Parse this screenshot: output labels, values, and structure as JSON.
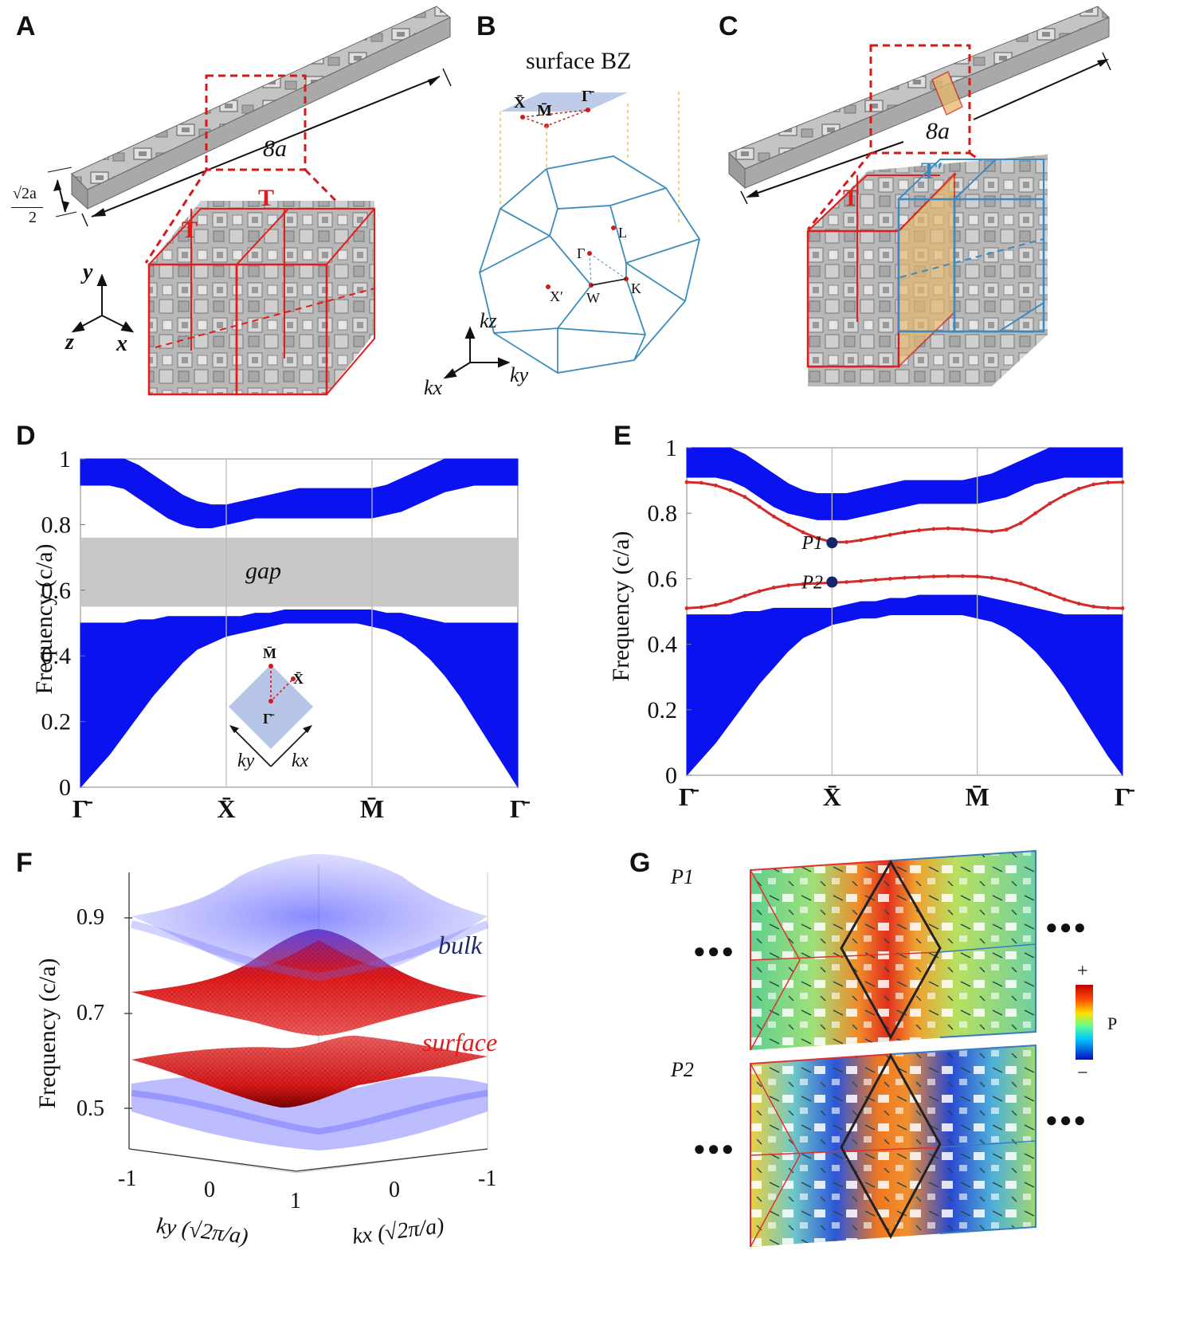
{
  "panels": {
    "A": {
      "letter": "A",
      "length_label": "8a",
      "height_label_num": "√2a",
      "height_label_den": "2",
      "cell_labels": [
        "T",
        "T"
      ],
      "axes": [
        "y",
        "z",
        "x"
      ]
    },
    "B": {
      "letter": "B",
      "title": "surface BZ",
      "surface_points": [
        "X̄",
        "M̄",
        "Γ̄"
      ],
      "bulk_points": [
        "L",
        "Γ",
        "X′",
        "W",
        "K"
      ],
      "axes": [
        "kz",
        "kx",
        "ky"
      ]
    },
    "C": {
      "letter": "C",
      "length_label": "8a",
      "cell_labels": [
        "T",
        "T′"
      ]
    },
    "D": {
      "letter": "D"
    },
    "E": {
      "letter": "E"
    },
    "F": {
      "letter": "F"
    },
    "G": {
      "letter": "G",
      "mode_labels": [
        "P1",
        "P2"
      ],
      "colorbar_plus": "+",
      "colorbar_minus": "−",
      "colorbar_label": "P",
      "ellipsis": "●●●"
    }
  },
  "chart_data": [
    {
      "panel": "D",
      "type": "area",
      "ylabel": "Frequency (c/a)",
      "xlabel": "",
      "ylim": [
        0,
        1
      ],
      "yticks": [
        0,
        0.2,
        0.4,
        0.6,
        0.8,
        1
      ],
      "x_ticks": [
        "Γ̄",
        "X̄",
        "M̄",
        "Γ̄"
      ],
      "x": [
        0,
        0.1,
        0.2,
        0.3,
        0.4,
        0.5,
        0.6,
        0.7,
        0.8,
        0.9,
        1.0,
        1.1,
        1.2,
        1.3,
        1.4,
        1.5,
        1.6,
        1.7,
        1.8,
        1.9,
        2.0,
        2.1,
        2.2,
        2.3,
        2.4,
        2.5,
        2.6,
        2.7,
        2.8,
        2.9,
        3.0
      ],
      "bands": [
        {
          "name": "",
          "lower": [
            0,
            0.05,
            0.1,
            0.16,
            0.22,
            0.28,
            0.33,
            0.38,
            0.42,
            0.44,
            0.46,
            0.47,
            0.48,
            0.49,
            0.5,
            0.5,
            0.5,
            0.5,
            0.5,
            0.5,
            0.49,
            0.48,
            0.46,
            0.43,
            0.39,
            0.34,
            0.28,
            0.21,
            0.14,
            0.07,
            0
          ],
          "upper": [
            0.5,
            0.5,
            0.5,
            0.5,
            0.51,
            0.51,
            0.52,
            0.52,
            0.52,
            0.52,
            0.52,
            0.52,
            0.53,
            0.53,
            0.54,
            0.54,
            0.54,
            0.54,
            0.54,
            0.54,
            0.54,
            0.53,
            0.53,
            0.52,
            0.51,
            0.5,
            0.5,
            0.5,
            0.5,
            0.5,
            0.5
          ]
        },
        {
          "name": "",
          "lower": [
            0.92,
            0.92,
            0.92,
            0.91,
            0.88,
            0.85,
            0.82,
            0.8,
            0.79,
            0.79,
            0.8,
            0.81,
            0.82,
            0.82,
            0.82,
            0.82,
            0.82,
            0.82,
            0.82,
            0.82,
            0.82,
            0.83,
            0.84,
            0.86,
            0.88,
            0.9,
            0.91,
            0.92,
            0.92,
            0.92,
            0.92
          ],
          "upper": [
            1,
            1,
            1,
            1,
            0.98,
            0.95,
            0.92,
            0.89,
            0.87,
            0.86,
            0.86,
            0.87,
            0.88,
            0.89,
            0.9,
            0.91,
            0.91,
            0.91,
            0.91,
            0.91,
            0.91,
            0.92,
            0.94,
            0.96,
            0.98,
            1,
            1,
            1,
            1,
            1,
            1
          ]
        }
      ],
      "gap": {
        "label": "gap",
        "from": 0.55,
        "to": 0.76
      },
      "inset": {
        "points": [
          "M̄",
          "X̄",
          "Γ̄"
        ],
        "axes": [
          "ky",
          "kx"
        ]
      }
    },
    {
      "panel": "E",
      "type": "area",
      "ylabel": "Frequency (c/a)",
      "xlabel": "",
      "ylim": [
        0,
        1
      ],
      "yticks": [
        0,
        0.2,
        0.4,
        0.6,
        0.8,
        1
      ],
      "x_ticks": [
        "Γ̄",
        "X̄",
        "M̄",
        "Γ̄"
      ],
      "x": [
        0,
        0.1,
        0.2,
        0.3,
        0.4,
        0.5,
        0.6,
        0.7,
        0.8,
        0.9,
        1.0,
        1.1,
        1.2,
        1.3,
        1.4,
        1.5,
        1.6,
        1.7,
        1.8,
        1.9,
        2.0,
        2.1,
        2.2,
        2.3,
        2.4,
        2.5,
        2.6,
        2.7,
        2.8,
        2.9,
        3.0
      ],
      "bands": [
        {
          "name": "",
          "lower": [
            0,
            0.05,
            0.1,
            0.16,
            0.22,
            0.28,
            0.33,
            0.38,
            0.42,
            0.44,
            0.46,
            0.47,
            0.48,
            0.48,
            0.49,
            0.49,
            0.49,
            0.49,
            0.49,
            0.49,
            0.48,
            0.47,
            0.45,
            0.42,
            0.38,
            0.33,
            0.27,
            0.2,
            0.13,
            0.06,
            0
          ],
          "upper": [
            0.49,
            0.49,
            0.49,
            0.49,
            0.5,
            0.5,
            0.51,
            0.51,
            0.51,
            0.51,
            0.51,
            0.52,
            0.53,
            0.53,
            0.54,
            0.54,
            0.55,
            0.55,
            0.55,
            0.55,
            0.55,
            0.54,
            0.53,
            0.52,
            0.51,
            0.5,
            0.49,
            0.49,
            0.49,
            0.49,
            0.49
          ]
        },
        {
          "name": "",
          "lower": [
            0.91,
            0.91,
            0.91,
            0.9,
            0.88,
            0.85,
            0.82,
            0.8,
            0.79,
            0.78,
            0.78,
            0.78,
            0.79,
            0.8,
            0.81,
            0.82,
            0.83,
            0.83,
            0.83,
            0.83,
            0.83,
            0.84,
            0.85,
            0.87,
            0.89,
            0.9,
            0.91,
            0.91,
            0.91,
            0.91,
            0.91
          ],
          "upper": [
            1,
            1,
            1,
            1,
            0.98,
            0.95,
            0.92,
            0.89,
            0.87,
            0.86,
            0.86,
            0.86,
            0.87,
            0.88,
            0.89,
            0.9,
            0.9,
            0.9,
            0.9,
            0.9,
            0.91,
            0.92,
            0.94,
            0.96,
            0.98,
            1,
            1,
            1,
            1,
            1,
            1
          ]
        }
      ],
      "series": [
        {
          "name": "",
          "values": [
            0.895,
            0.893,
            0.885,
            0.87,
            0.85,
            0.82,
            0.79,
            0.765,
            0.742,
            0.724,
            0.712,
            0.712,
            0.718,
            0.726,
            0.734,
            0.742,
            0.748,
            0.752,
            0.754,
            0.752,
            0.748,
            0.744,
            0.75,
            0.77,
            0.8,
            0.83,
            0.855,
            0.875,
            0.888,
            0.894,
            0.895
          ]
        },
        {
          "name": "",
          "values": [
            0.51,
            0.513,
            0.52,
            0.532,
            0.548,
            0.562,
            0.573,
            0.58,
            0.584,
            0.586,
            0.588,
            0.59,
            0.593,
            0.597,
            0.6,
            0.603,
            0.605,
            0.607,
            0.608,
            0.608,
            0.607,
            0.603,
            0.596,
            0.585,
            0.57,
            0.553,
            0.537,
            0.524,
            0.515,
            0.511,
            0.51
          ]
        }
      ],
      "markers": [
        {
          "label": "P1",
          "x": 1.0,
          "y": 0.71
        },
        {
          "label": "P2",
          "x": 1.0,
          "y": 0.59
        }
      ]
    },
    {
      "panel": "F",
      "type": "surface",
      "ylabel": "Frequency (c/a)",
      "zticks": [
        0.5,
        0.7,
        0.9
      ],
      "xlabel_left": "ky (√2π/a)",
      "xlabel_right": "kx (√2π/a)",
      "left_ticks": [
        "-1",
        "0",
        "1"
      ],
      "right_ticks": [
        "0",
        "-1"
      ],
      "surface_labels": [
        "bulk",
        "surface"
      ]
    }
  ]
}
